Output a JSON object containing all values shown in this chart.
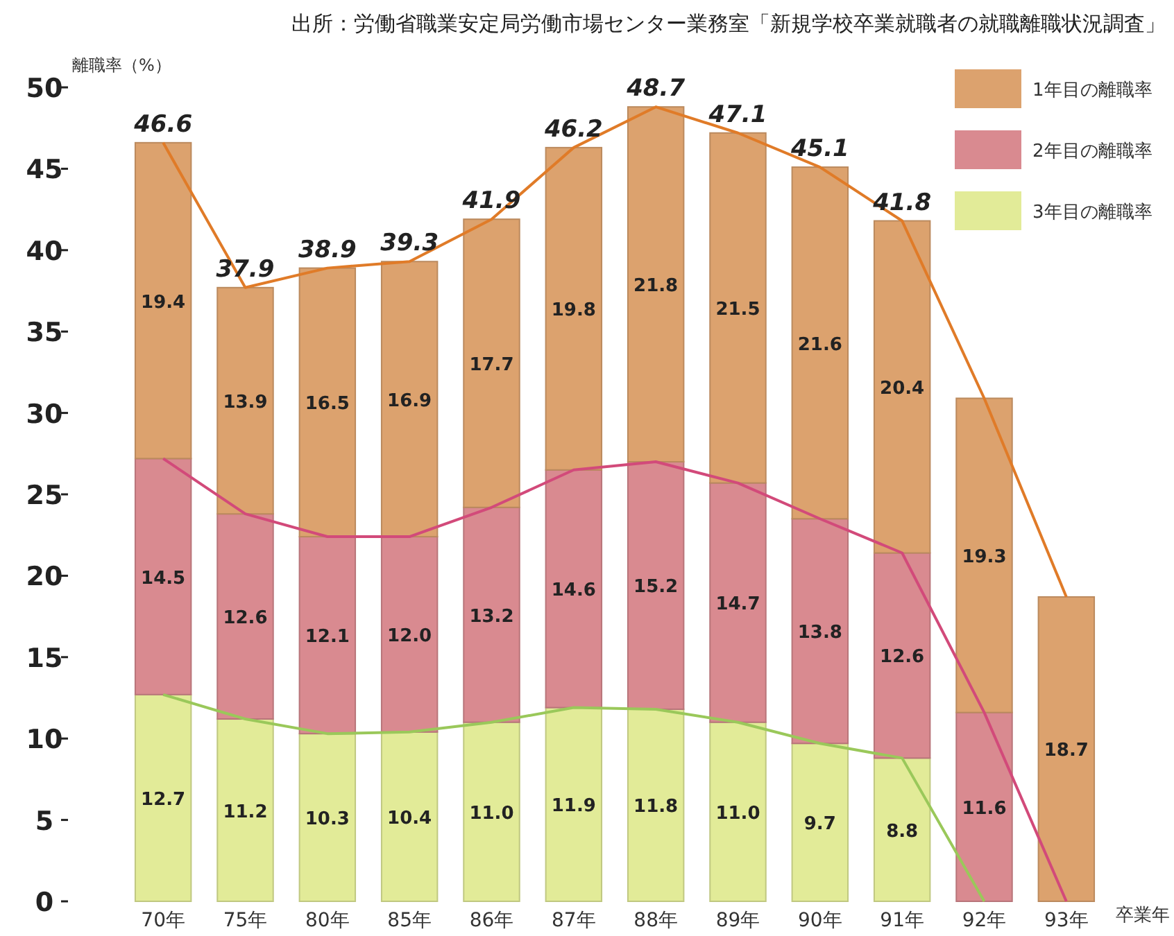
{
  "chart_data": {
    "type": "bar",
    "stacked": true,
    "title": "出所：労働省職業安定局労働市場センター業務室「新規学校卒業就職者の就職離職状況調査」",
    "ylabel": "離職率（%）",
    "xlabel": "卒業年",
    "categories": [
      "70年",
      "75年",
      "80年",
      "85年",
      "86年",
      "87年",
      "88年",
      "89年",
      "90年",
      "91年",
      "92年",
      "93年"
    ],
    "series": [
      {
        "name": "3年目の離職率",
        "color": "#e2eb98",
        "values": [
          12.7,
          11.2,
          10.3,
          10.4,
          11.0,
          11.9,
          11.8,
          11.0,
          9.7,
          8.8,
          null,
          null
        ],
        "value_labels": [
          "12.7",
          "11.2",
          "10.3",
          "10.4",
          "11.0",
          "11.9",
          "11.8",
          "11.0",
          "9.7",
          "8.8",
          null,
          null
        ]
      },
      {
        "name": "2年目の離職率",
        "color": "#d98a90",
        "values": [
          14.5,
          12.6,
          12.1,
          12.0,
          13.2,
          14.6,
          15.2,
          14.7,
          13.8,
          12.6,
          11.6,
          null
        ],
        "value_labels": [
          "14.5",
          "12.6",
          "12.1",
          "12.0",
          "13.2",
          "14.6",
          "15.2",
          "14.7",
          "13.8",
          "12.6",
          "11.6",
          null
        ]
      },
      {
        "name": "1年目の離職率",
        "color": "#dca26e",
        "values": [
          19.4,
          13.9,
          16.5,
          16.9,
          17.7,
          19.8,
          21.8,
          21.5,
          21.6,
          20.4,
          19.3,
          18.7
        ],
        "value_labels": [
          "19.4",
          "13.9",
          "16.5",
          "16.9",
          "17.7",
          "19.8",
          "21.8",
          "21.5",
          "21.6",
          "20.4",
          "19.3",
          "18.7"
        ]
      },
      {
        "type": "line",
        "color": "#9ac85a",
        "values": [
          12.7,
          11.2,
          10.3,
          10.4,
          11.0,
          11.9,
          11.8,
          11.0,
          9.7,
          8.8,
          0,
          null
        ]
      },
      {
        "type": "line",
        "color": "#d24a7a",
        "values": [
          27.2,
          23.8,
          22.4,
          22.4,
          24.2,
          26.5,
          27.0,
          25.7,
          23.5,
          21.4,
          11.6,
          0
        ]
      },
      {
        "type": "line",
        "color": "#e07b28",
        "values": [
          46.6,
          37.7,
          38.9,
          39.3,
          41.9,
          46.3,
          48.8,
          47.2,
          45.1,
          41.8,
          30.9,
          18.7
        ]
      }
    ],
    "totals": [
      "46.6",
      "37.9",
      "38.9",
      "39.3",
      "41.9",
      "46.2",
      "48.7",
      "47.1",
      "45.1",
      "41.8",
      null,
      null
    ],
    "ylim": [
      0,
      50
    ],
    "yticks": [
      0,
      5,
      10,
      15,
      20,
      25,
      30,
      35,
      40,
      45,
      50
    ],
    "grid": false,
    "legend": "top right"
  }
}
